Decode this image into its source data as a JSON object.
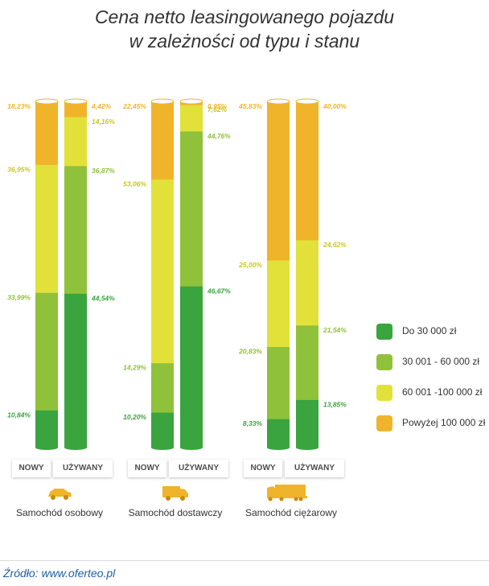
{
  "chart_data": {
    "type": "stacked-bar",
    "title_lines": [
      "Cena netto leasingowanego pojazdu",
      "w zależności od typu i stanu"
    ],
    "segment_names": [
      "Do 30 000 zł",
      "30 001 - 60 000 zł",
      "60 001 -100 000 zł",
      "Powyżej 100 000 zł"
    ],
    "groups": [
      {
        "name": "Samochód osobowy",
        "vehicle": "car",
        "bars": [
          {
            "label": "NOWY",
            "values": [
              10.84,
              33.99,
              36.95,
              18.23
            ],
            "value_labels": [
              "10,84%",
              "33,99%",
              "36,95%",
              "18,23%"
            ]
          },
          {
            "label": "UŻYWANY",
            "values": [
              44.54,
              36.87,
              14.16,
              4.42
            ],
            "value_labels": [
              "44,54%",
              "36,87%",
              "14,16%",
              "4,42%"
            ]
          }
        ]
      },
      {
        "name": "Samochód dostawczy",
        "vehicle": "van",
        "bars": [
          {
            "label": "NOWY",
            "values": [
              10.2,
              14.29,
              53.06,
              22.45
            ],
            "value_labels": [
              "10,20%",
              "14,29%",
              "53,06%",
              "22,45%"
            ]
          },
          {
            "label": "UŻYWANY",
            "values": [
              46.67,
              44.76,
              7.62,
              0.95
            ],
            "value_labels": [
              "46,67%",
              "44,76%",
              "7,62%",
              "0,95%"
            ]
          }
        ]
      },
      {
        "name": "Samochód ciężarowy",
        "vehicle": "truck",
        "bars": [
          {
            "label": "NOWY",
            "values": [
              8.33,
              20.83,
              25.0,
              45.83
            ],
            "value_labels": [
              "8,33%",
              "20,83%",
              "25,00%",
              "45,83%"
            ]
          },
          {
            "label": "UŻYWANY",
            "values": [
              13.85,
              21.54,
              24.62,
              40.0
            ],
            "value_labels": [
              "13,85%",
              "21,54%",
              "24,62%",
              "40,00%"
            ]
          }
        ]
      }
    ],
    "colors": [
      "#3aa43f",
      "#8fc23a",
      "#e2e13a",
      "#f0b42a"
    ],
    "label_colors": [
      "#3aa43f",
      "#8fc23a",
      "#c8c820",
      "#f0b42a"
    ]
  },
  "legend": {
    "items": [
      {
        "label": "Do 30 000 zł",
        "color": "#3aa43f"
      },
      {
        "label": "30 001 - 60 000 zł",
        "color": "#8fc23a"
      },
      {
        "label": "60 001 -100 000 zł",
        "color": "#e2e13a"
      },
      {
        "label": "Powyżej 100 000 zł",
        "color": "#f0b42a"
      }
    ]
  },
  "source": "Źródło: www.oferteo.pl"
}
